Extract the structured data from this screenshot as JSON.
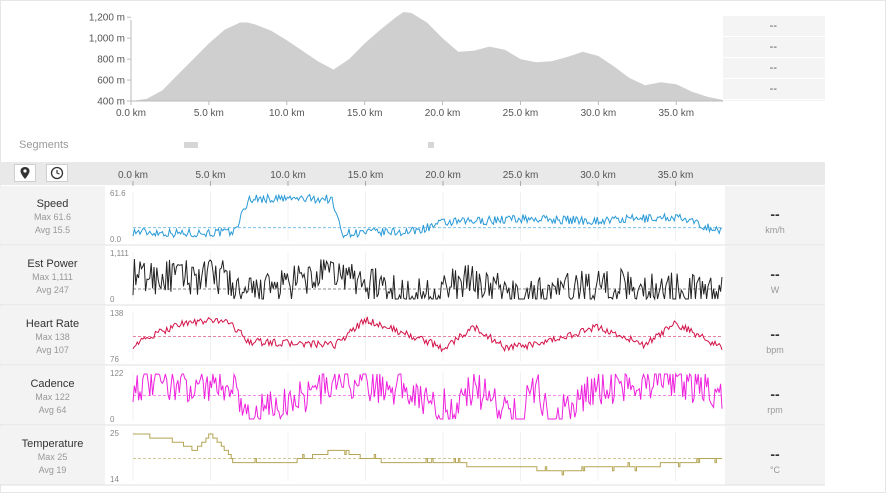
{
  "elevation": {
    "y_ticks": [
      "1,200 m",
      "1,000 m",
      "800 m",
      "600 m",
      "400 m"
    ],
    "x_ticks": [
      "0.0 km",
      "5.0 km",
      "10.0 km",
      "15.0 km",
      "20.0 km",
      "25.0 km",
      "30.0 km",
      "35.0 km"
    ],
    "fill_color": "#cfcfcf"
  },
  "stats_values": [
    "--",
    "--",
    "--",
    "--"
  ],
  "segments_label": "Segments",
  "toolbar": {
    "map_icon": "map-pin-icon",
    "time_icon": "clock-icon"
  },
  "panel_x_ticks": [
    "0.0 km",
    "5.0 km",
    "10.0 km",
    "15.0 km",
    "20.0 km",
    "25.0 km",
    "30.0 km",
    "35.0 km"
  ],
  "panels": [
    {
      "name": "Speed",
      "max": "Max 61.6",
      "avg": "Avg 15.5",
      "value": "--",
      "unit": "km/h",
      "ytop": "61.6",
      "ybot": "0.0",
      "color": "#2a9ad6"
    },
    {
      "name": "Est Power",
      "max": "Max 1,111",
      "avg": "Avg 247",
      "value": "--",
      "unit": "W",
      "ytop": "1,111",
      "ybot": "0",
      "color": "#222222"
    },
    {
      "name": "Heart Rate",
      "max": "Max 138",
      "avg": "Avg 107",
      "value": "--",
      "unit": "bpm",
      "ytop": "138",
      "ybot": "76",
      "color": "#d3144a"
    },
    {
      "name": "Cadence",
      "max": "Max 122",
      "avg": "Avg 64",
      "value": "--",
      "unit": "rpm",
      "ytop": "122",
      "ybot": "0",
      "color": "#ee22dd"
    },
    {
      "name": "Temperature",
      "max": "Max 25",
      "avg": "Avg 19",
      "value": "--",
      "unit": "°C",
      "ytop": "25",
      "ybot": "14",
      "color": "#b5a554"
    }
  ],
  "chart_data": [
    {
      "type": "area",
      "x": [
        0,
        1,
        2,
        3,
        4,
        5,
        6,
        7,
        7.5,
        8,
        9,
        10,
        11,
        12,
        13,
        14,
        15,
        16,
        17,
        17.5,
        18,
        19,
        20,
        21,
        22,
        23,
        24,
        25,
        26,
        27,
        28,
        29,
        30,
        31,
        32,
        33,
        34,
        35,
        36,
        37,
        38
      ],
      "y": [
        400,
        420,
        500,
        650,
        800,
        950,
        1080,
        1150,
        1150,
        1130,
        1070,
        980,
        880,
        780,
        700,
        800,
        950,
        1080,
        1200,
        1250,
        1240,
        1150,
        1000,
        870,
        880,
        920,
        890,
        800,
        770,
        780,
        820,
        870,
        830,
        730,
        620,
        550,
        580,
        560,
        490,
        440,
        410
      ],
      "xlabel": "",
      "ylabel": "",
      "xlim": [
        0,
        38
      ],
      "ylim": [
        400,
        1250
      ],
      "x_ticks": [
        "0.0 km",
        "5.0 km",
        "10.0 km",
        "15.0 km",
        "20.0 km",
        "25.0 km",
        "30.0 km",
        "35.0 km"
      ],
      "y_ticks": [
        "400 m",
        "600 m",
        "800 m",
        "1,000 m",
        "1,200 m"
      ]
    },
    {
      "type": "line",
      "series": [
        {
          "name": "Speed",
          "x": [
            0,
            3,
            6.5,
            7.5,
            12.8,
            13.5,
            18,
            20,
            25,
            30,
            35,
            38
          ],
          "y": [
            10,
            8,
            9,
            55,
            55,
            8,
            10,
            22,
            28,
            25,
            30,
            10
          ]
        }
      ],
      "ylim": [
        0,
        61.6
      ],
      "avg": 15.5
    },
    {
      "type": "line",
      "series": [
        {
          "name": "Est Power",
          "x": [
            0,
            6,
            7,
            13,
            18,
            22,
            25,
            30,
            38
          ],
          "y": [
            500,
            500,
            0,
            600,
            0,
            400,
            0,
            300,
            100
          ]
        }
      ],
      "ylim": [
        0,
        1111
      ],
      "avg": 247
    },
    {
      "type": "line",
      "series": [
        {
          "name": "Heart Rate",
          "x": [
            0,
            3,
            6,
            7.5,
            13,
            15,
            19,
            20,
            22,
            24,
            26,
            30,
            33,
            35,
            38
          ],
          "y": [
            95,
            125,
            130,
            100,
            95,
            130,
            100,
            90,
            120,
            92,
            95,
            120,
            95,
            125,
            92
          ]
        }
      ],
      "ylim": [
        76,
        138
      ],
      "avg": 107
    },
    {
      "type": "line",
      "series": [
        {
          "name": "Cadence",
          "x": [
            0,
            6.5,
            7.5,
            13,
            18,
            20,
            22,
            25,
            26,
            27,
            30,
            35,
            38
          ],
          "y": [
            90,
            90,
            0,
            95,
            80,
            0,
            80,
            0,
            90,
            0,
            80,
            100,
            60
          ]
        }
      ],
      "ylim": [
        0,
        122
      ],
      "avg": 64
    },
    {
      "type": "line",
      "series": [
        {
          "name": "Temperature",
          "x": [
            0,
            2,
            3,
            4,
            5,
            6,
            6.5,
            10,
            13,
            13.5,
            15,
            17,
            19,
            24,
            28,
            30,
            33,
            35,
            38
          ],
          "y": [
            25,
            24,
            23,
            21,
            25,
            21,
            18,
            18,
            21,
            21,
            19,
            18,
            18,
            17,
            16,
            17,
            17,
            18,
            19
          ]
        }
      ],
      "ylim": [
        14,
        25
      ],
      "avg": 19
    }
  ]
}
